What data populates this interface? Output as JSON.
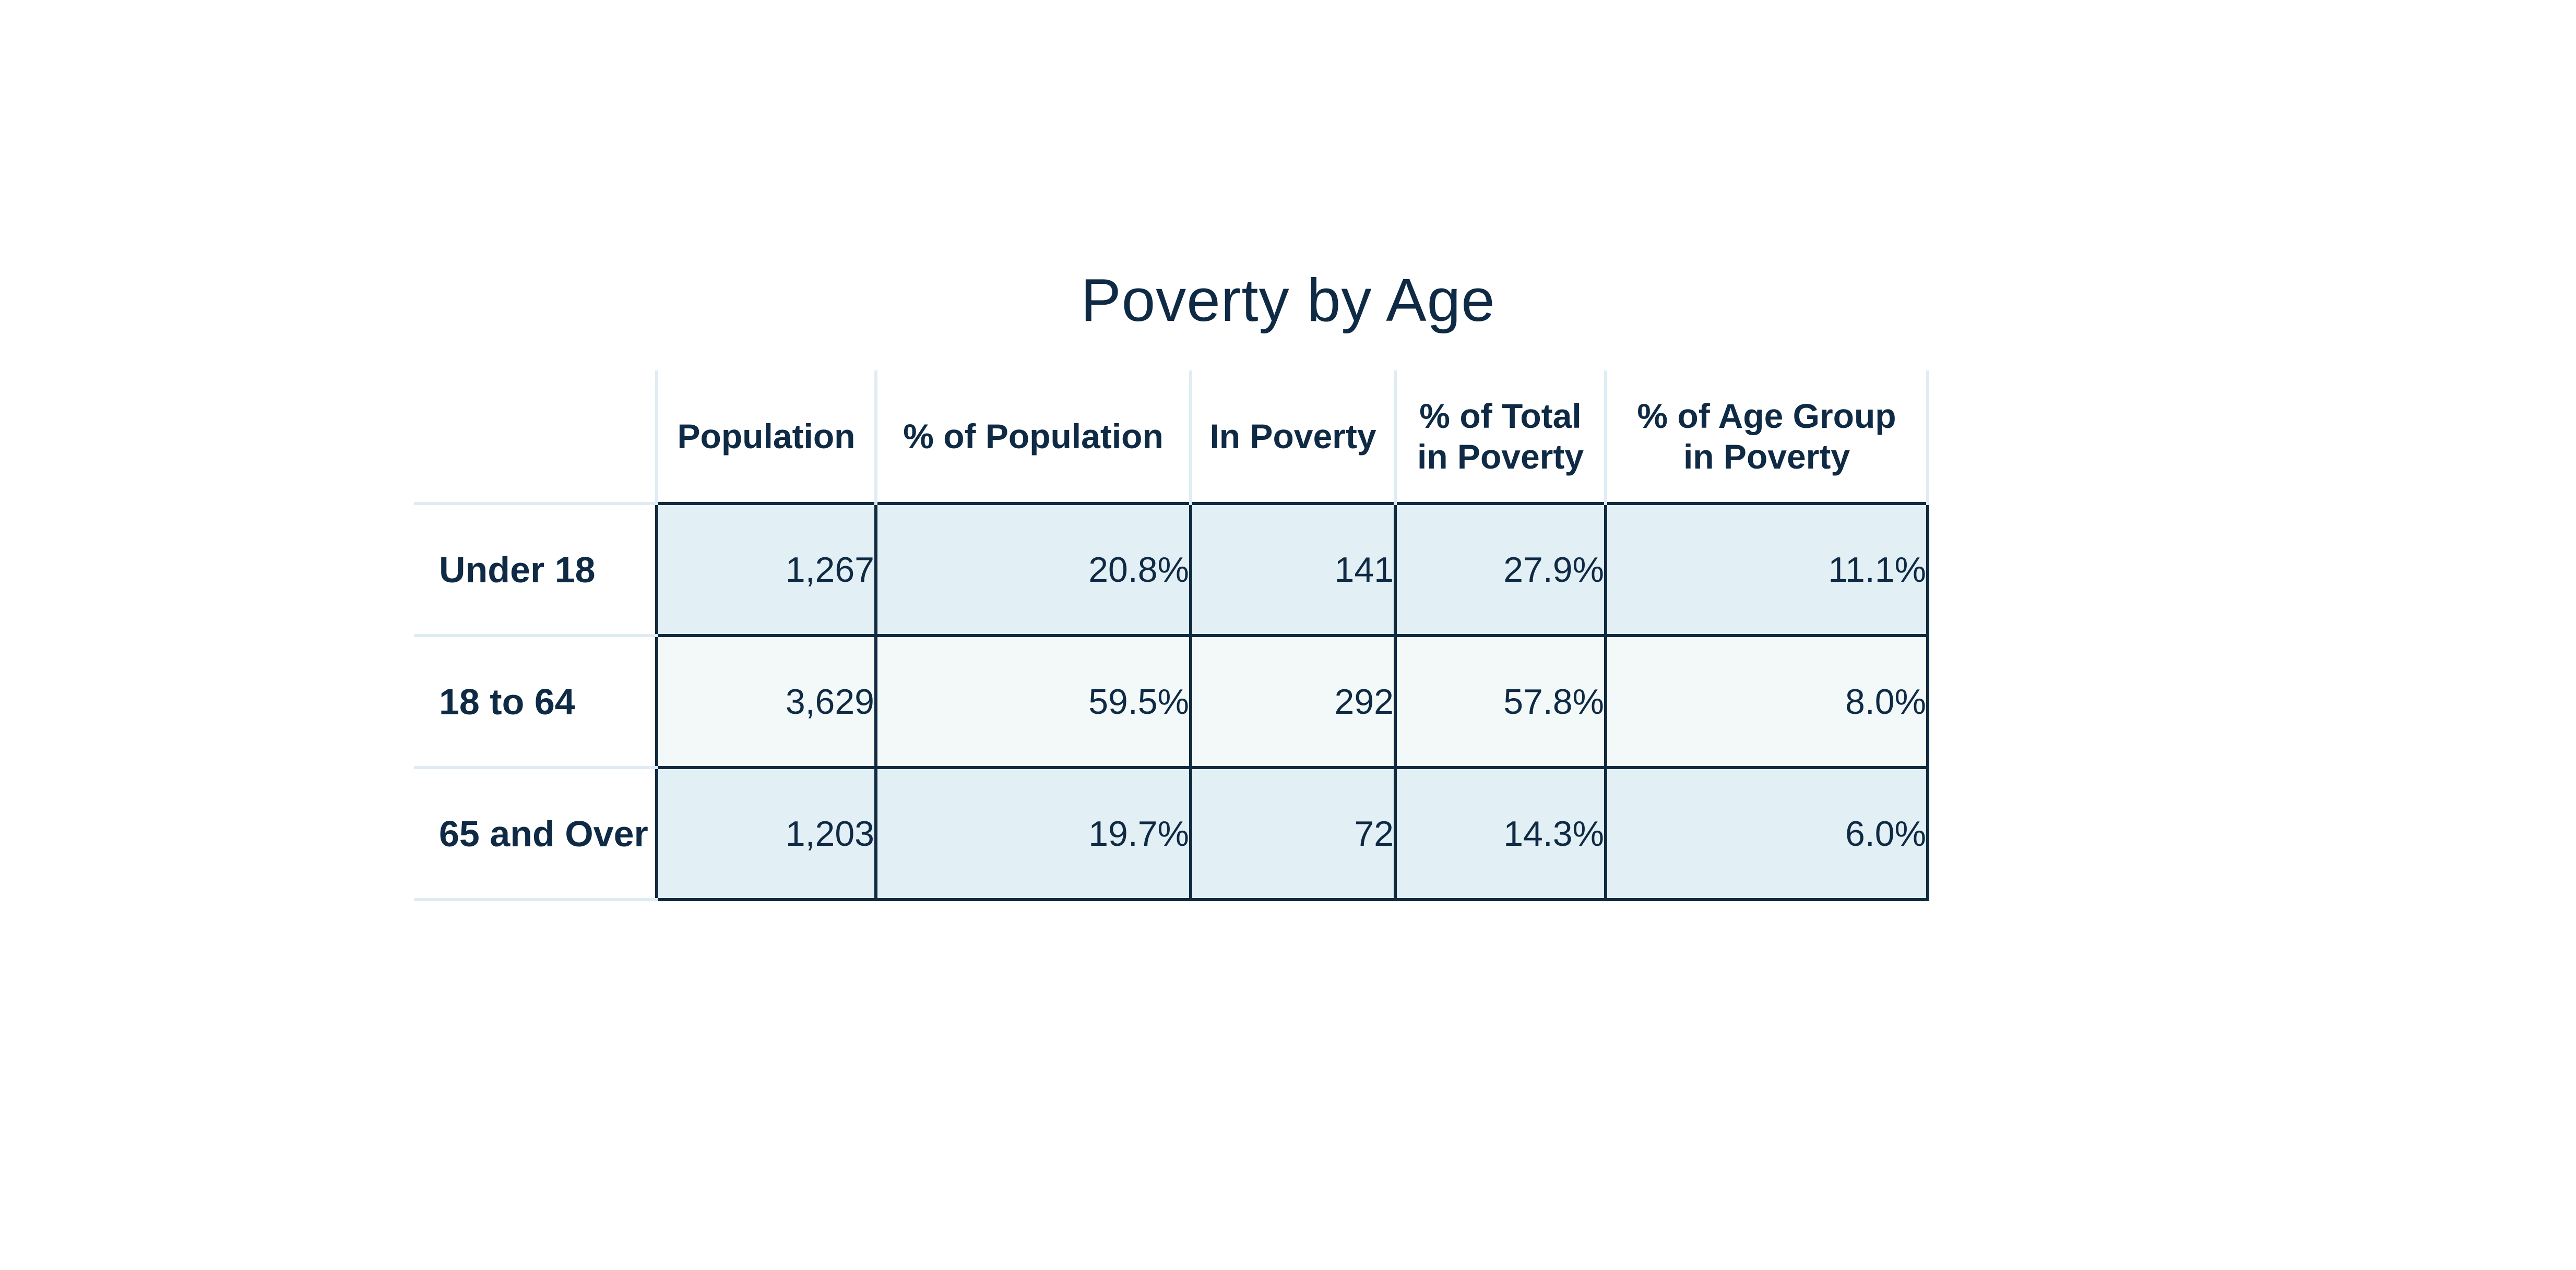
{
  "chart_data": {
    "type": "table",
    "title": "Poverty by Age",
    "columns": [
      "Population",
      "% of Population",
      "In Poverty",
      "% of Total\nin Poverty",
      "% of Age Group\nin Poverty"
    ],
    "rows": [
      {
        "label": "Under 18",
        "cells": [
          "1,267",
          "20.8%",
          "141",
          "27.9%",
          "11.1%"
        ]
      },
      {
        "label": "18 to 64",
        "cells": [
          "3,629",
          "59.5%",
          "292",
          "57.8%",
          "8.0%"
        ]
      },
      {
        "label": "65 and Over",
        "cells": [
          "1,203",
          "19.7%",
          "72",
          "14.3%",
          "6.0%"
        ]
      }
    ],
    "colors": {
      "text": "#0f2a44",
      "band_dark": "#e2eff4",
      "band_light": "#f3f9f9",
      "grid_dark": "#102a3f",
      "grid_light": "#dfecf4"
    }
  }
}
